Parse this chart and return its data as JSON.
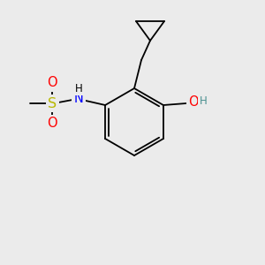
{
  "background_color": "#ebebeb",
  "bond_color": "#000000",
  "atom_colors": {
    "O": "#ff0000",
    "N": "#0000ff",
    "S": "#b8b800",
    "H_dark": "#4a9090",
    "C": "#000000"
  },
  "lw": 1.3,
  "font_size": 10.5
}
